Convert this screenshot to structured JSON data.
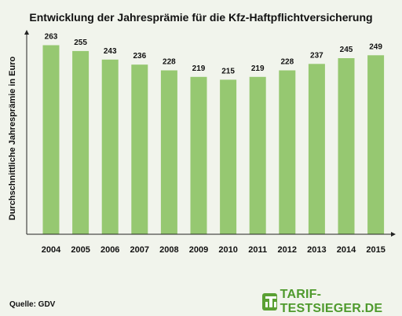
{
  "chart_data": {
    "type": "bar",
    "title": "Entwicklung der Jahresprämie für die Kfz-Haftpflichtversicherung",
    "xlabel": "",
    "ylabel": "Durchschnittliche Jahresprämie in Euro",
    "categories": [
      "2004",
      "2005",
      "2006",
      "2007",
      "2008",
      "2009",
      "2010",
      "2011",
      "2012",
      "2013",
      "2014",
      "2015"
    ],
    "values": [
      263,
      255,
      243,
      236,
      228,
      219,
      215,
      219,
      228,
      237,
      245,
      249
    ],
    "ylim": [
      0,
      280
    ],
    "grid": false,
    "bar_color": "#96c871",
    "data_labels": true
  },
  "footer": {
    "source": "Quelle: GDV",
    "brand": "TARIF-TESTSIEGER.DE"
  },
  "colors": {
    "background": "#f1f4ec",
    "brand_green": "#4f9a2d"
  }
}
